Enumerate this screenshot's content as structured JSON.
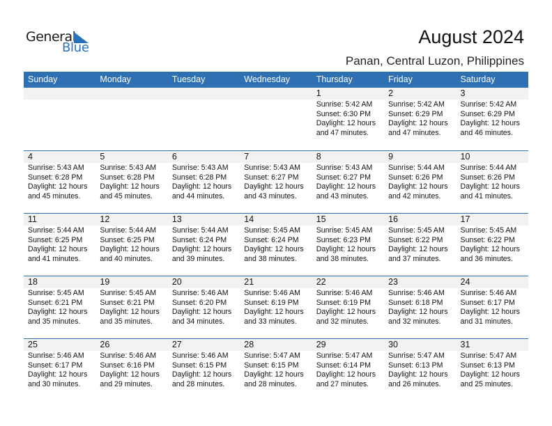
{
  "logo": {
    "word1": "General",
    "word2": "Blue"
  },
  "title": "August 2024",
  "location": "Panan, Central Luzon, Philippines",
  "colors": {
    "header": "#2e70b1",
    "day_band": "#f2f2f2"
  },
  "weekdays": [
    "Sunday",
    "Monday",
    "Tuesday",
    "Wednesday",
    "Thursday",
    "Friday",
    "Saturday"
  ],
  "weeks": [
    [
      null,
      null,
      null,
      null,
      {
        "day": "1",
        "sunrise": "Sunrise: 5:42 AM",
        "sunset": "Sunset: 6:30 PM",
        "daylight": "Daylight: 12 hours",
        "minutes": "and 47 minutes."
      },
      {
        "day": "2",
        "sunrise": "Sunrise: 5:42 AM",
        "sunset": "Sunset: 6:29 PM",
        "daylight": "Daylight: 12 hours",
        "minutes": "and 47 minutes."
      },
      {
        "day": "3",
        "sunrise": "Sunrise: 5:42 AM",
        "sunset": "Sunset: 6:29 PM",
        "daylight": "Daylight: 12 hours",
        "minutes": "and 46 minutes."
      }
    ],
    [
      {
        "day": "4",
        "sunrise": "Sunrise: 5:43 AM",
        "sunset": "Sunset: 6:28 PM",
        "daylight": "Daylight: 12 hours",
        "minutes": "and 45 minutes."
      },
      {
        "day": "5",
        "sunrise": "Sunrise: 5:43 AM",
        "sunset": "Sunset: 6:28 PM",
        "daylight": "Daylight: 12 hours",
        "minutes": "and 45 minutes."
      },
      {
        "day": "6",
        "sunrise": "Sunrise: 5:43 AM",
        "sunset": "Sunset: 6:28 PM",
        "daylight": "Daylight: 12 hours",
        "minutes": "and 44 minutes."
      },
      {
        "day": "7",
        "sunrise": "Sunrise: 5:43 AM",
        "sunset": "Sunset: 6:27 PM",
        "daylight": "Daylight: 12 hours",
        "minutes": "and 43 minutes."
      },
      {
        "day": "8",
        "sunrise": "Sunrise: 5:43 AM",
        "sunset": "Sunset: 6:27 PM",
        "daylight": "Daylight: 12 hours",
        "minutes": "and 43 minutes."
      },
      {
        "day": "9",
        "sunrise": "Sunrise: 5:44 AM",
        "sunset": "Sunset: 6:26 PM",
        "daylight": "Daylight: 12 hours",
        "minutes": "and 42 minutes."
      },
      {
        "day": "10",
        "sunrise": "Sunrise: 5:44 AM",
        "sunset": "Sunset: 6:26 PM",
        "daylight": "Daylight: 12 hours",
        "minutes": "and 41 minutes."
      }
    ],
    [
      {
        "day": "11",
        "sunrise": "Sunrise: 5:44 AM",
        "sunset": "Sunset: 6:25 PM",
        "daylight": "Daylight: 12 hours",
        "minutes": "and 41 minutes."
      },
      {
        "day": "12",
        "sunrise": "Sunrise: 5:44 AM",
        "sunset": "Sunset: 6:25 PM",
        "daylight": "Daylight: 12 hours",
        "minutes": "and 40 minutes."
      },
      {
        "day": "13",
        "sunrise": "Sunrise: 5:44 AM",
        "sunset": "Sunset: 6:24 PM",
        "daylight": "Daylight: 12 hours",
        "minutes": "and 39 minutes."
      },
      {
        "day": "14",
        "sunrise": "Sunrise: 5:45 AM",
        "sunset": "Sunset: 6:24 PM",
        "daylight": "Daylight: 12 hours",
        "minutes": "and 38 minutes."
      },
      {
        "day": "15",
        "sunrise": "Sunrise: 5:45 AM",
        "sunset": "Sunset: 6:23 PM",
        "daylight": "Daylight: 12 hours",
        "minutes": "and 38 minutes."
      },
      {
        "day": "16",
        "sunrise": "Sunrise: 5:45 AM",
        "sunset": "Sunset: 6:22 PM",
        "daylight": "Daylight: 12 hours",
        "minutes": "and 37 minutes."
      },
      {
        "day": "17",
        "sunrise": "Sunrise: 5:45 AM",
        "sunset": "Sunset: 6:22 PM",
        "daylight": "Daylight: 12 hours",
        "minutes": "and 36 minutes."
      }
    ],
    [
      {
        "day": "18",
        "sunrise": "Sunrise: 5:45 AM",
        "sunset": "Sunset: 6:21 PM",
        "daylight": "Daylight: 12 hours",
        "minutes": "and 35 minutes."
      },
      {
        "day": "19",
        "sunrise": "Sunrise: 5:45 AM",
        "sunset": "Sunset: 6:21 PM",
        "daylight": "Daylight: 12 hours",
        "minutes": "and 35 minutes."
      },
      {
        "day": "20",
        "sunrise": "Sunrise: 5:46 AM",
        "sunset": "Sunset: 6:20 PM",
        "daylight": "Daylight: 12 hours",
        "minutes": "and 34 minutes."
      },
      {
        "day": "21",
        "sunrise": "Sunrise: 5:46 AM",
        "sunset": "Sunset: 6:19 PM",
        "daylight": "Daylight: 12 hours",
        "minutes": "and 33 minutes."
      },
      {
        "day": "22",
        "sunrise": "Sunrise: 5:46 AM",
        "sunset": "Sunset: 6:19 PM",
        "daylight": "Daylight: 12 hours",
        "minutes": "and 32 minutes."
      },
      {
        "day": "23",
        "sunrise": "Sunrise: 5:46 AM",
        "sunset": "Sunset: 6:18 PM",
        "daylight": "Daylight: 12 hours",
        "minutes": "and 32 minutes."
      },
      {
        "day": "24",
        "sunrise": "Sunrise: 5:46 AM",
        "sunset": "Sunset: 6:17 PM",
        "daylight": "Daylight: 12 hours",
        "minutes": "and 31 minutes."
      }
    ],
    [
      {
        "day": "25",
        "sunrise": "Sunrise: 5:46 AM",
        "sunset": "Sunset: 6:17 PM",
        "daylight": "Daylight: 12 hours",
        "minutes": "and 30 minutes."
      },
      {
        "day": "26",
        "sunrise": "Sunrise: 5:46 AM",
        "sunset": "Sunset: 6:16 PM",
        "daylight": "Daylight: 12 hours",
        "minutes": "and 29 minutes."
      },
      {
        "day": "27",
        "sunrise": "Sunrise: 5:46 AM",
        "sunset": "Sunset: 6:15 PM",
        "daylight": "Daylight: 12 hours",
        "minutes": "and 28 minutes."
      },
      {
        "day": "28",
        "sunrise": "Sunrise: 5:47 AM",
        "sunset": "Sunset: 6:15 PM",
        "daylight": "Daylight: 12 hours",
        "minutes": "and 28 minutes."
      },
      {
        "day": "29",
        "sunrise": "Sunrise: 5:47 AM",
        "sunset": "Sunset: 6:14 PM",
        "daylight": "Daylight: 12 hours",
        "minutes": "and 27 minutes."
      },
      {
        "day": "30",
        "sunrise": "Sunrise: 5:47 AM",
        "sunset": "Sunset: 6:13 PM",
        "daylight": "Daylight: 12 hours",
        "minutes": "and 26 minutes."
      },
      {
        "day": "31",
        "sunrise": "Sunrise: 5:47 AM",
        "sunset": "Sunset: 6:13 PM",
        "daylight": "Daylight: 12 hours",
        "minutes": "and 25 minutes."
      }
    ]
  ]
}
